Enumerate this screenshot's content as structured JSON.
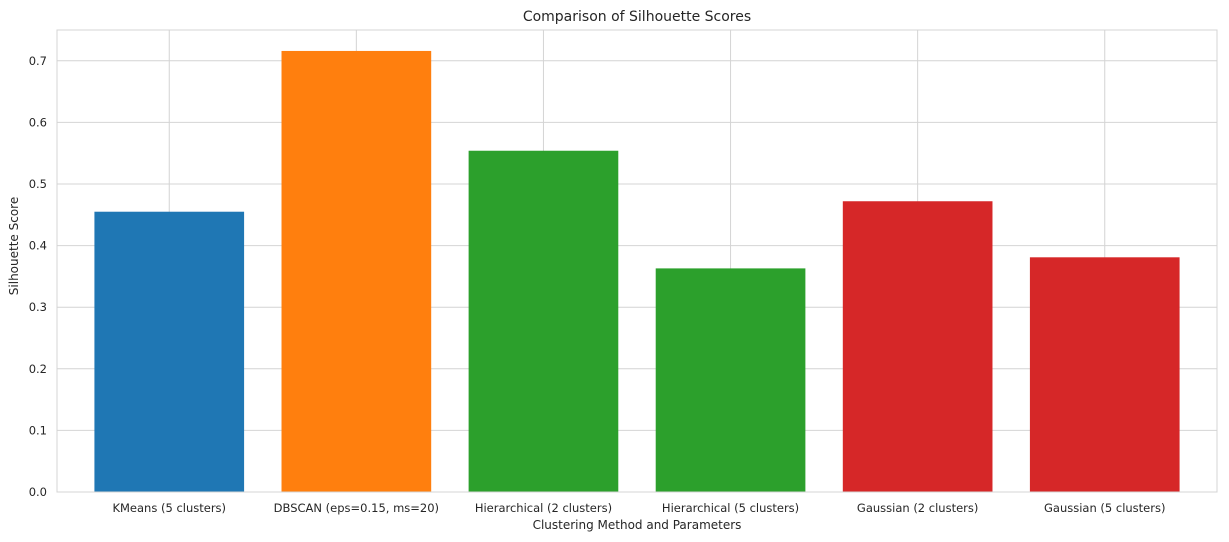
{
  "chart_data": {
    "type": "bar",
    "title": "Comparison of Silhouette Scores",
    "xlabel": "Clustering Method and Parameters",
    "ylabel": "Silhouette Score",
    "categories": [
      "KMeans (5 clusters)",
      "DBSCAN (eps=0.15, ms=20)",
      "Hierarchical (2 clusters)",
      "Hierarchical (5 clusters)",
      "Gaussian (2 clusters)",
      "Gaussian (5 clusters)"
    ],
    "values": [
      0.455,
      0.716,
      0.554,
      0.363,
      0.472,
      0.381
    ],
    "colors": [
      "#1f77b4",
      "#ff7f0e",
      "#2ca02c",
      "#2ca02c",
      "#d62728",
      "#d62728"
    ],
    "ylim": [
      0,
      0.75
    ],
    "yticks": [
      0.0,
      0.1,
      0.2,
      0.3,
      0.4,
      0.5,
      0.6,
      0.7
    ],
    "ytick_labels": [
      "0.0",
      "0.1",
      "0.2",
      "0.3",
      "0.4",
      "0.5",
      "0.6",
      "0.7"
    ],
    "grid": true,
    "legend": "none"
  }
}
